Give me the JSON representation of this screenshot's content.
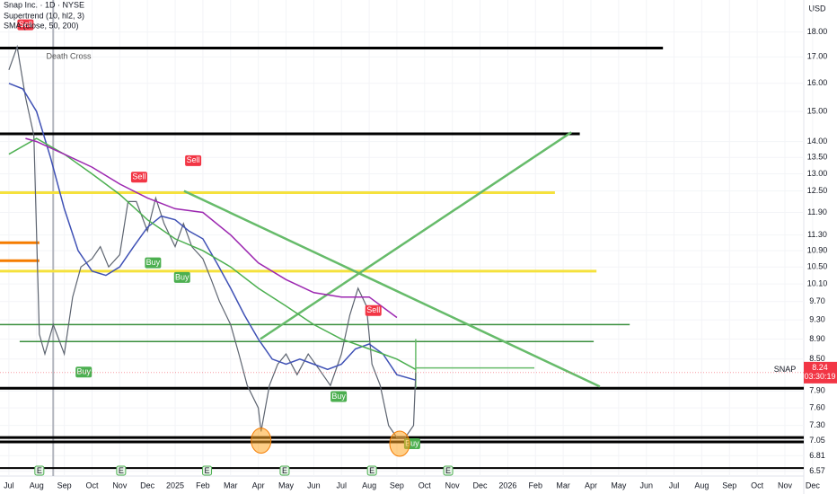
{
  "chart_data": {
    "type": "line",
    "title": "Snap Inc. · 1D · NYSE",
    "indicators": [
      "Supertrend (10, hl2, 3)",
      "SMA (close, 50, 200)"
    ],
    "currency": "USD",
    "log_scale": true,
    "xlim": [
      -0.32,
      28.68
    ],
    "ylim": [
      6.5,
      19.37
    ],
    "xticks": [
      {
        "value": 0,
        "label": "Jul"
      },
      {
        "value": 1,
        "label": "Aug"
      },
      {
        "value": 2,
        "label": "Sep"
      },
      {
        "value": 3,
        "label": "Oct"
      },
      {
        "value": 4,
        "label": "Nov"
      },
      {
        "value": 5,
        "label": "Dec"
      },
      {
        "value": 6,
        "label": "2025"
      },
      {
        "value": 7,
        "label": "Feb"
      },
      {
        "value": 8,
        "label": "Mar"
      },
      {
        "value": 9,
        "label": "Apr"
      },
      {
        "value": 10,
        "label": "May"
      },
      {
        "value": 11,
        "label": "Jun"
      },
      {
        "value": 12,
        "label": "Jul"
      },
      {
        "value": 13,
        "label": "Aug"
      },
      {
        "value": 14,
        "label": "Sep"
      },
      {
        "value": 15,
        "label": "Oct"
      },
      {
        "value": 16,
        "label": "Nov"
      },
      {
        "value": 17,
        "label": "Dec"
      },
      {
        "value": 18,
        "label": "2026"
      },
      {
        "value": 19,
        "label": "Feb"
      },
      {
        "value": 20,
        "label": "Mar"
      },
      {
        "value": 21,
        "label": "Apr"
      },
      {
        "value": 22,
        "label": "May"
      },
      {
        "value": 23,
        "label": "Jun"
      },
      {
        "value": 24,
        "label": "Jul"
      },
      {
        "value": 25,
        "label": "Aug"
      },
      {
        "value": 26,
        "label": "Sep"
      },
      {
        "value": 27,
        "label": "Oct"
      },
      {
        "value": 28,
        "label": "Nov"
      },
      {
        "value": 29,
        "label": "Dec"
      }
    ],
    "yticks": [
      {
        "value": 18,
        "label": "18.00"
      },
      {
        "value": 17,
        "label": "17.00"
      },
      {
        "value": 16,
        "label": "16.00"
      },
      {
        "value": 15,
        "label": "15.00"
      },
      {
        "value": 14,
        "label": "14.00"
      },
      {
        "value": 13.5,
        "label": "13.50"
      },
      {
        "value": 13,
        "label": "13.00"
      },
      {
        "value": 12.5,
        "label": "12.50"
      },
      {
        "value": 11.9,
        "label": "11.90"
      },
      {
        "value": 11.3,
        "label": "11.30"
      },
      {
        "value": 10.9,
        "label": "10.90"
      },
      {
        "value": 10.5,
        "label": "10.50"
      },
      {
        "value": 10.1,
        "label": "10.10"
      },
      {
        "value": 9.7,
        "label": "9.70"
      },
      {
        "value": 9.3,
        "label": "9.30"
      },
      {
        "value": 8.9,
        "label": "8.90"
      },
      {
        "value": 8.5,
        "label": "8.50"
      },
      {
        "value": 7.9,
        "label": "7.90"
      },
      {
        "value": 7.6,
        "label": "7.60"
      },
      {
        "value": 7.3,
        "label": "7.30"
      },
      {
        "value": 7.05,
        "label": "7.05"
      },
      {
        "value": 6.81,
        "label": "6.81"
      },
      {
        "value": 6.57,
        "label": "6.57"
      }
    ],
    "last_price": {
      "name": "SNAP",
      "value": 8.24,
      "label": "8.24",
      "countdown": "03:30:19"
    },
    "series": [
      {
        "name": "SNAP",
        "color": "#5d6470",
        "x": [
          0,
          0.3,
          0.6,
          0.9,
          1.1,
          1.3,
          1.6,
          2.0,
          2.3,
          2.6,
          3.0,
          3.3,
          3.6,
          4.0,
          4.3,
          4.6,
          5.0,
          5.3,
          5.6,
          6.0,
          6.3,
          6.6,
          7.0,
          7.3,
          7.6,
          8.0,
          8.3,
          8.6,
          9.0,
          9.1,
          9.4,
          9.7,
          10.0,
          10.4,
          10.8,
          11.2,
          11.6,
          12.0,
          12.3,
          12.6,
          12.9,
          13.1,
          13.4,
          13.7,
          14.0,
          14.3,
          14.6,
          14.68
        ],
        "values": [
          16.5,
          17.4,
          15.5,
          14.2,
          9.0,
          8.6,
          9.2,
          8.6,
          9.8,
          10.5,
          10.7,
          11.0,
          10.5,
          10.8,
          12.2,
          12.2,
          11.4,
          12.3,
          11.6,
          11.0,
          11.6,
          11.0,
          10.7,
          10.2,
          9.7,
          9.2,
          8.6,
          8.0,
          7.6,
          7.2,
          8.0,
          8.4,
          8.6,
          8.2,
          8.6,
          8.3,
          8.0,
          8.6,
          9.4,
          10.0,
          9.6,
          8.4,
          8.0,
          7.3,
          7.1,
          7.1,
          7.3,
          8.24
        ]
      },
      {
        "color": "#3f51b5",
        "x": [
          0,
          0.5,
          1,
          1.5,
          2,
          2.5,
          3,
          3.5,
          4,
          4.5,
          5,
          5.5,
          6,
          6.5,
          7,
          7.5,
          8,
          8.5,
          9,
          9.5,
          10,
          10.5,
          11,
          11.5,
          12,
          12.5,
          13,
          13.5,
          14,
          14.68
        ],
        "values": [
          16.0,
          15.8,
          15.0,
          13.5,
          12.0,
          10.9,
          10.4,
          10.3,
          10.5,
          11.0,
          11.5,
          11.8,
          11.7,
          11.4,
          11.2,
          10.6,
          10.0,
          9.4,
          8.9,
          8.5,
          8.4,
          8.5,
          8.4,
          8.3,
          8.4,
          8.7,
          8.8,
          8.6,
          8.2,
          8.1
        ]
      },
      {
        "color": "#4caf50",
        "x": [
          0,
          1,
          2,
          3,
          4,
          5,
          6,
          7,
          8,
          9,
          10,
          11,
          12,
          13,
          14,
          14.68
        ],
        "values": [
          13.6,
          14.1,
          13.6,
          13.0,
          12.4,
          11.7,
          11.2,
          10.9,
          10.5,
          10.0,
          9.6,
          9.2,
          8.9,
          8.7,
          8.5,
          8.3
        ]
      },
      {
        "color": "#9c27b0",
        "x": [
          0.6,
          1,
          2,
          3,
          4,
          5,
          6,
          7,
          8,
          9,
          10,
          11,
          12,
          13,
          14
        ],
        "values": [
          14.1,
          14.0,
          13.6,
          13.2,
          12.7,
          12.3,
          12.0,
          11.9,
          11.3,
          10.6,
          10.2,
          9.9,
          9.8,
          9.8,
          9.35
        ]
      }
    ],
    "drawings": [
      {
        "color": "#000000",
        "width": 3,
        "x": [
          -0.32,
          23.6
        ],
        "values": [
          17.35,
          17.35
        ]
      },
      {
        "color": "#000000",
        "width": 3,
        "x": [
          -0.32,
          20.6
        ],
        "values": [
          14.25,
          14.25
        ]
      },
      {
        "color": "#f5e13c",
        "width": 3,
        "x": [
          -0.32,
          19.7
        ],
        "values": [
          12.45,
          12.45
        ]
      },
      {
        "color": "#f5e13c",
        "width": 3,
        "x": [
          -0.32,
          21.2
        ],
        "values": [
          10.4,
          10.4
        ]
      },
      {
        "color": "#f57c00",
        "width": 3,
        "x": [
          -0.32,
          1.1
        ],
        "values": [
          11.1,
          11.1
        ]
      },
      {
        "color": "#f57c00",
        "width": 3,
        "x": [
          -0.32,
          1.1
        ],
        "values": [
          10.65,
          10.65
        ]
      },
      {
        "color": "#388e3c",
        "width": 1.5,
        "x": [
          -0.32,
          22.4
        ],
        "values": [
          9.2,
          9.2
        ]
      },
      {
        "color": "#388e3c",
        "width": 1.5,
        "x": [
          0.39,
          21.1
        ],
        "values": [
          8.85,
          8.85
        ]
      },
      {
        "color": "#000000",
        "width": 3,
        "x": [
          -0.32,
          28.68
        ],
        "values": [
          7.95,
          7.95
        ]
      },
      {
        "color": "#000000",
        "width": 3,
        "x": [
          -0.32,
          28.68
        ],
        "values": [
          7.1,
          7.1
        ]
      },
      {
        "color": "#000000",
        "width": 3,
        "x": [
          -0.32,
          28.68
        ],
        "values": [
          7.03,
          7.03
        ]
      },
      {
        "color": "#000000",
        "width": 2,
        "x": [
          -0.32,
          28.68
        ],
        "values": [
          6.62,
          6.62
        ]
      },
      {
        "color": "#66bb6a",
        "width": 2.5,
        "x": [
          6.32,
          21.32
        ],
        "values": [
          12.5,
          7.98
        ]
      },
      {
        "color": "#66bb6a",
        "width": 2.5,
        "x": [
          9.07,
          20.29
        ],
        "values": [
          8.9,
          14.3
        ]
      },
      {
        "color": "#66bb6a",
        "width": 1.5,
        "x": [
          14.68,
          18.96
        ],
        "values": [
          8.33,
          8.33
        ]
      },
      {
        "color": "#66bb6a",
        "width": 1.5,
        "x": [
          14.68,
          14.68
        ],
        "values": [
          8.9,
          7.95
        ]
      }
    ],
    "annotations": [
      {
        "text": "Sell",
        "x": 0.6,
        "value": 18.3
      },
      {
        "text": "Death Cross",
        "x": 1.35,
        "value": 17.0
      },
      {
        "text": "Sell",
        "x": 4.7,
        "value": 12.9
      },
      {
        "text": "Sell",
        "x": 6.65,
        "value": 13.4
      },
      {
        "text": "Buy",
        "x": 2.7,
        "value": 8.25
      },
      {
        "text": "Buy",
        "x": 5.2,
        "value": 10.6
      },
      {
        "text": "Buy",
        "x": 6.25,
        "value": 10.25
      },
      {
        "text": "Buy",
        "x": 11.9,
        "value": 7.8
      },
      {
        "text": "Sell",
        "x": 13.15,
        "value": 9.5
      },
      {
        "text": "Buy",
        "x": 14.55,
        "value": 7.0
      }
    ],
    "events": [
      {
        "label": "E",
        "x": 1.1
      },
      {
        "label": "E",
        "x": 4.05
      },
      {
        "label": "E",
        "x": 7.15
      },
      {
        "label": "E",
        "x": 9.95
      },
      {
        "label": "E",
        "x": 13.1
      },
      {
        "label": "E",
        "x": 15.85
      }
    ]
  }
}
